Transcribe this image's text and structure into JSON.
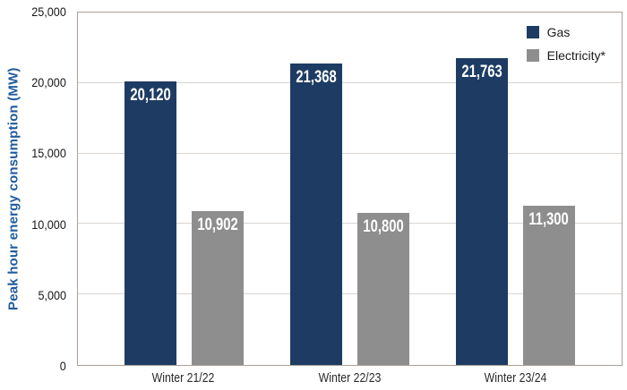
{
  "chart_data": {
    "type": "bar",
    "title": "",
    "ylabel": "Peak hour energy consumption (MW)",
    "xlabel": "",
    "categories": [
      "Winter 21/22",
      "Winter 22/23",
      "Winter 23/24"
    ],
    "series": [
      {
        "name": "Gas",
        "color": "#1e3c63",
        "values": [
          20120,
          21368,
          21763
        ]
      },
      {
        "name": "Electricity*",
        "color": "#8e8e8e",
        "values": [
          10902,
          10800,
          11300
        ]
      }
    ],
    "ylim": [
      0,
      25000
    ],
    "yticks": [
      0,
      5000,
      10000,
      15000,
      20000,
      25000
    ],
    "ytick_labels": [
      "0",
      "5,000",
      "10,000",
      "15,000",
      "20,000",
      "25,000"
    ],
    "bar_value_labels": [
      "20,120",
      "21,368",
      "21,763",
      "10,902",
      "10,800",
      "11,300"
    ],
    "grid": true,
    "legend_position": "top-right-inside"
  },
  "style_colors": {
    "gas_navy": "#1e3c63",
    "electricity_gray": "#8e8e8e",
    "axis_title_blue": "#1f5b9d",
    "plot_border": "#ab9f97",
    "gridline": "#d9d4d0",
    "value_label_text": "#ffffff"
  }
}
